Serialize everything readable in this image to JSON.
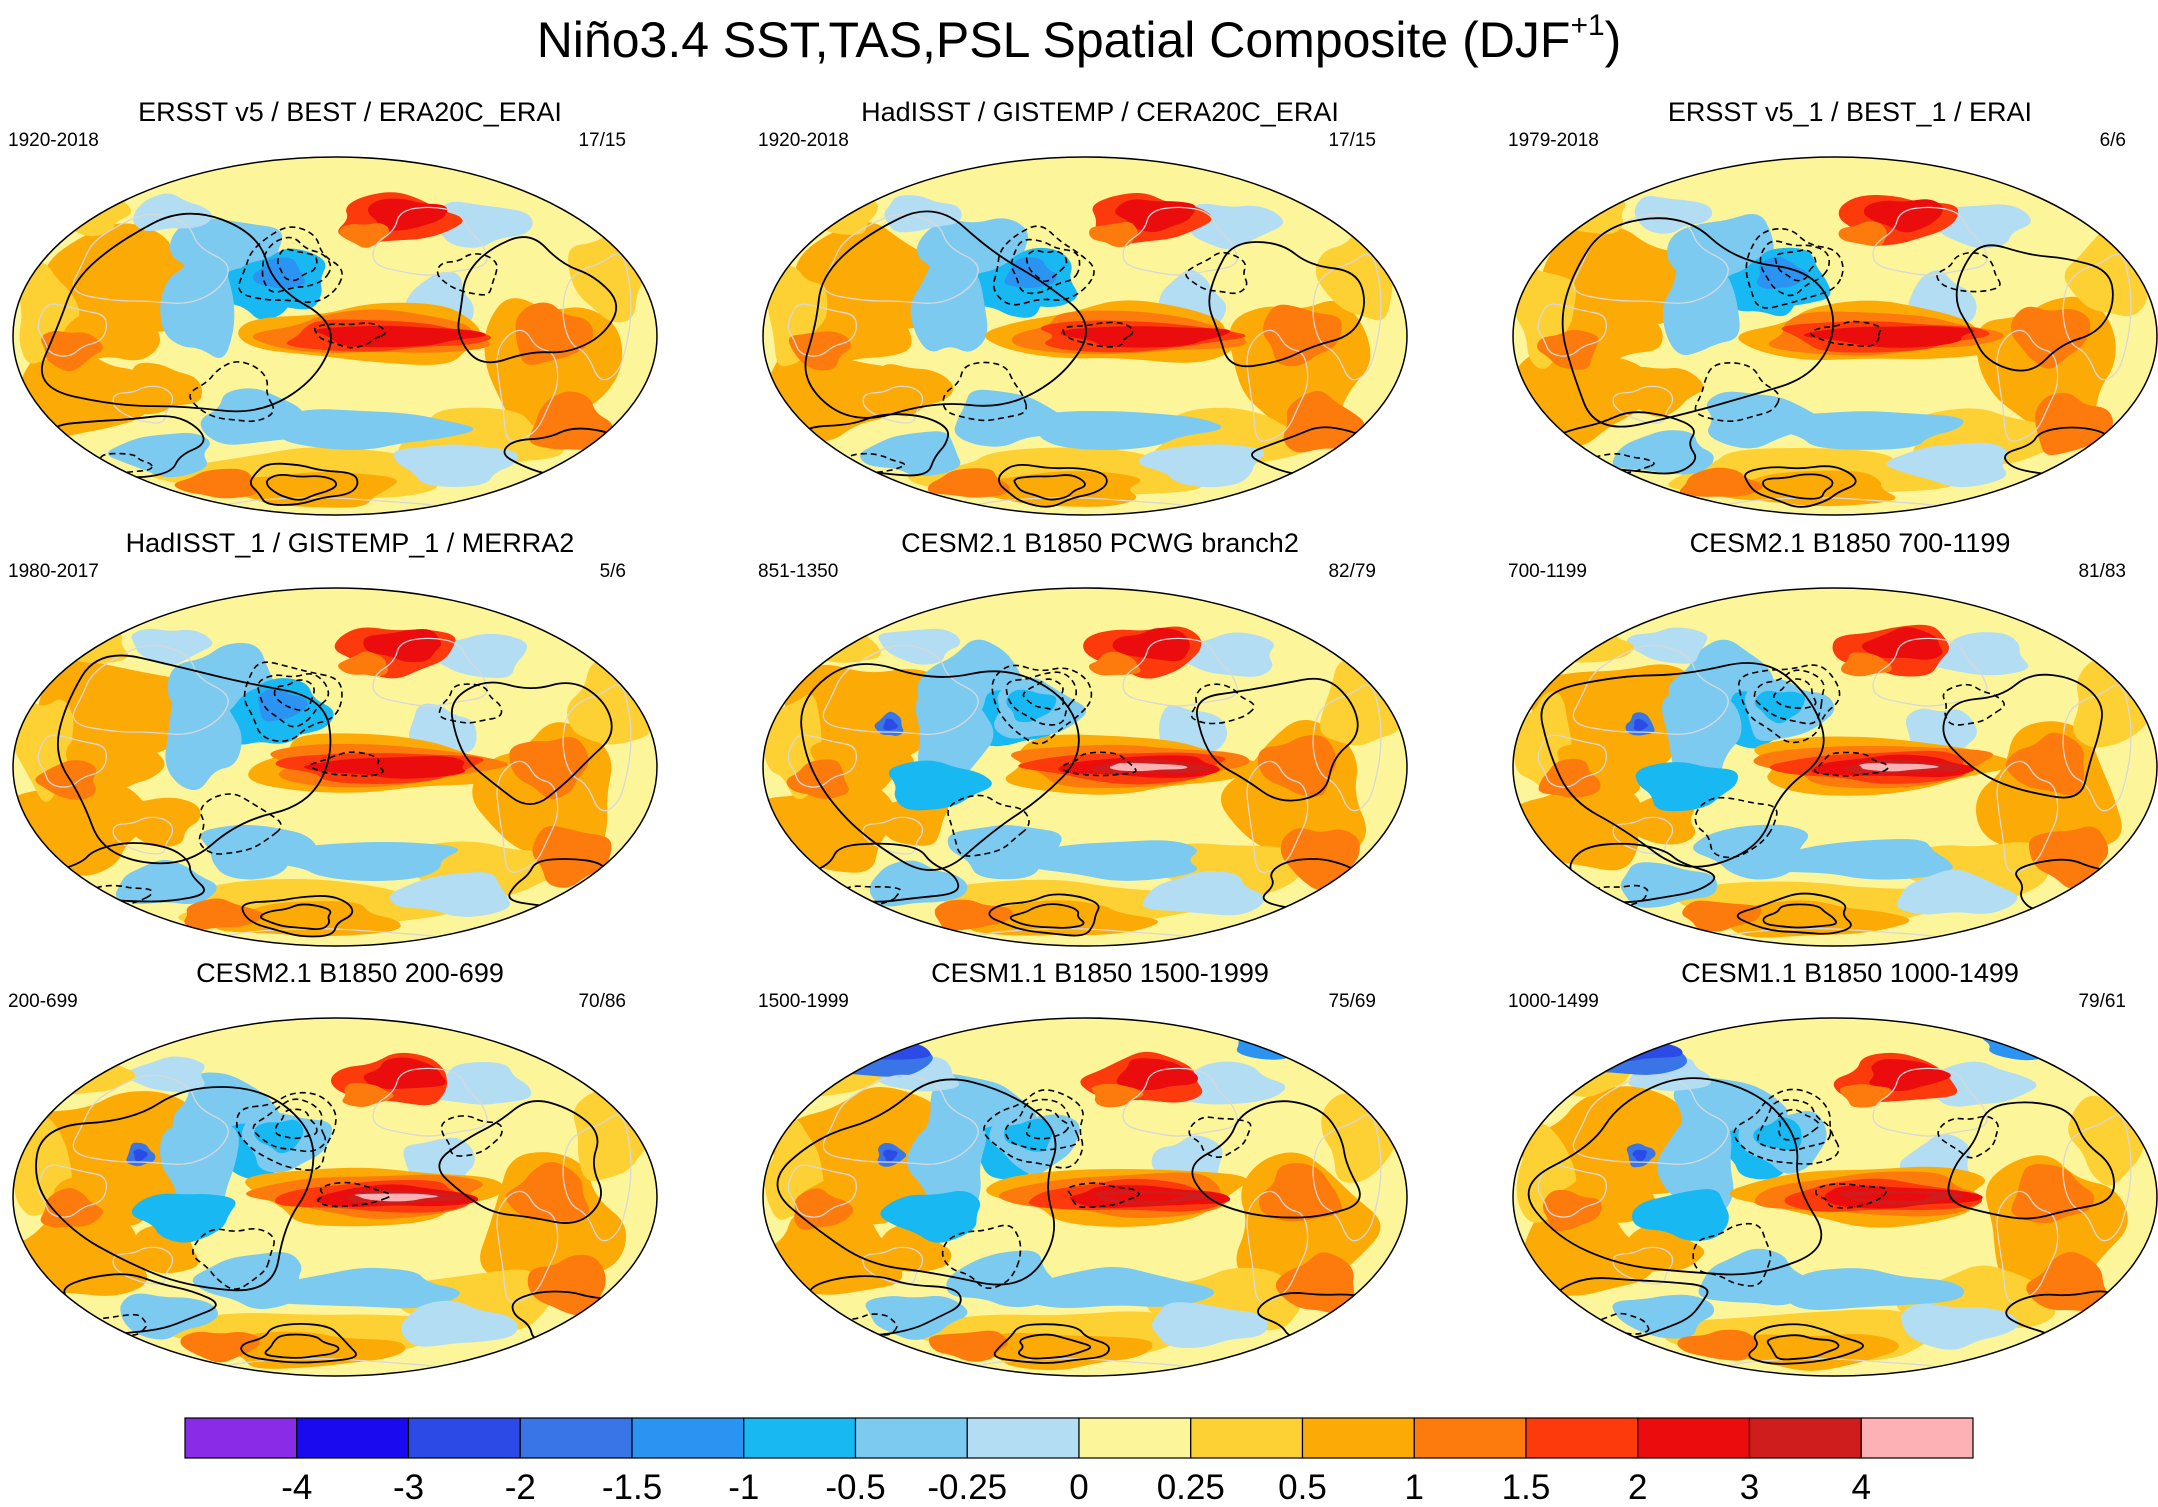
{
  "figure": {
    "title_main": "Niño3.4 SST,TAS,PSL Spatial Composite (DJF",
    "title_sup": "+1",
    "title_close": ")"
  },
  "panels": [
    {
      "title": "ERSST v5 / BEST / ERA20C_ERAI",
      "period": "1920-2018",
      "count": "17/15",
      "style": "obs"
    },
    {
      "title": "HadISST / GISTEMP / CERA20C_ERAI",
      "period": "1920-2018",
      "count": "17/15",
      "style": "obs"
    },
    {
      "title": "ERSST v5_1 / BEST_1 / ERAI",
      "period": "1979-2018",
      "count": "6/6",
      "style": "obs"
    },
    {
      "title": "HadISST_1 / GISTEMP_1 / MERRA2",
      "period": "1980-2017",
      "count": "5/6",
      "style": "obs"
    },
    {
      "title": "CESM2.1 B1850 PCWG branch2",
      "period": "851-1350",
      "count": "82/79",
      "style": "model"
    },
    {
      "title": "CESM2.1 B1850 700-1199",
      "period": "700-1199",
      "count": "81/83",
      "style": "model"
    },
    {
      "title": "CESM2.1 B1850 200-699",
      "period": "200-699",
      "count": "70/86",
      "style": "model"
    },
    {
      "title": "CESM1.1 B1850 1500-1999",
      "period": "1500-1999",
      "count": "75/69",
      "style": "model1"
    },
    {
      "title": "CESM1.1 B1850 1000-1499",
      "period": "1000-1499",
      "count": "79/61",
      "style": "model1"
    }
  ],
  "colorbar": {
    "colors": [
      "#8a2be8",
      "#1a0af0",
      "#2c4be6",
      "#3a75e8",
      "#2b93f2",
      "#18b8f2",
      "#7ccaf0",
      "#b3ddf2",
      "#fdf59a",
      "#fdd033",
      "#fcaa05",
      "#fd7b0c",
      "#fd3a0c",
      "#eb0d0d",
      "#cf1d1d",
      "#fdb1b4"
    ],
    "labels": [
      "-4",
      "-3",
      "-2",
      "-1.5",
      "-1",
      "-0.5",
      "-0.25",
      "0",
      "0.25",
      "0.5",
      "1",
      "1.5",
      "2",
      "3",
      "4"
    ]
  }
}
